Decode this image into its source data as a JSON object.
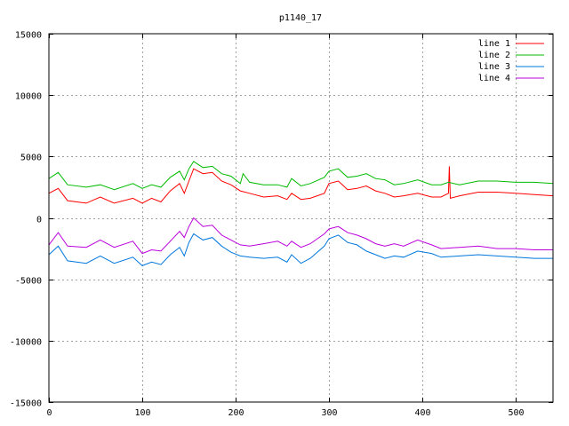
{
  "chart_data": {
    "type": "line",
    "title": "p1140_17",
    "xlim": [
      0,
      540
    ],
    "ylim": [
      -15000,
      15000
    ],
    "xticks": [
      0,
      100,
      200,
      300,
      400,
      500
    ],
    "yticks": [
      -15000,
      -10000,
      -5000,
      0,
      5000,
      10000,
      15000
    ],
    "grid": true,
    "legend_position": "top-right",
    "series": [
      {
        "name": "line 1",
        "color": "#ff0000",
        "points": [
          [
            0,
            2000
          ],
          [
            10,
            2400
          ],
          [
            20,
            1400
          ],
          [
            40,
            1200
          ],
          [
            55,
            1700
          ],
          [
            70,
            1200
          ],
          [
            90,
            1600
          ],
          [
            100,
            1200
          ],
          [
            110,
            1600
          ],
          [
            120,
            1300
          ],
          [
            130,
            2200
          ],
          [
            140,
            2800
          ],
          [
            145,
            2000
          ],
          [
            150,
            3000
          ],
          [
            155,
            4000
          ],
          [
            165,
            3600
          ],
          [
            175,
            3700
          ],
          [
            185,
            3000
          ],
          [
            195,
            2700
          ],
          [
            205,
            2200
          ],
          [
            215,
            2000
          ],
          [
            230,
            1700
          ],
          [
            245,
            1800
          ],
          [
            255,
            1500
          ],
          [
            260,
            2000
          ],
          [
            270,
            1500
          ],
          [
            280,
            1600
          ],
          [
            295,
            2000
          ],
          [
            300,
            2800
          ],
          [
            310,
            3000
          ],
          [
            320,
            2300
          ],
          [
            330,
            2400
          ],
          [
            340,
            2600
          ],
          [
            350,
            2200
          ],
          [
            360,
            2000
          ],
          [
            370,
            1700
          ],
          [
            380,
            1800
          ],
          [
            395,
            2000
          ],
          [
            410,
            1700
          ],
          [
            420,
            1700
          ],
          [
            428,
            2000
          ],
          [
            429,
            4200
          ],
          [
            430,
            1600
          ],
          [
            440,
            1800
          ],
          [
            460,
            2100
          ],
          [
            480,
            2100
          ],
          [
            500,
            2000
          ],
          [
            520,
            1900
          ],
          [
            540,
            1800
          ]
        ]
      },
      {
        "name": "line 2",
        "color": "#00bb00",
        "points": [
          [
            0,
            3200
          ],
          [
            10,
            3700
          ],
          [
            20,
            2700
          ],
          [
            40,
            2500
          ],
          [
            55,
            2700
          ],
          [
            70,
            2300
          ],
          [
            90,
            2800
          ],
          [
            100,
            2400
          ],
          [
            110,
            2700
          ],
          [
            120,
            2500
          ],
          [
            130,
            3300
          ],
          [
            140,
            3800
          ],
          [
            145,
            3100
          ],
          [
            150,
            4000
          ],
          [
            155,
            4600
          ],
          [
            165,
            4100
          ],
          [
            175,
            4200
          ],
          [
            185,
            3600
          ],
          [
            195,
            3400
          ],
          [
            205,
            2800
          ],
          [
            208,
            3600
          ],
          [
            215,
            2900
          ],
          [
            230,
            2700
          ],
          [
            245,
            2700
          ],
          [
            255,
            2500
          ],
          [
            260,
            3200
          ],
          [
            270,
            2600
          ],
          [
            280,
            2800
          ],
          [
            295,
            3300
          ],
          [
            300,
            3800
          ],
          [
            310,
            4000
          ],
          [
            320,
            3300
          ],
          [
            330,
            3400
          ],
          [
            340,
            3600
          ],
          [
            350,
            3200
          ],
          [
            360,
            3100
          ],
          [
            370,
            2700
          ],
          [
            380,
            2800
          ],
          [
            395,
            3100
          ],
          [
            410,
            2700
          ],
          [
            420,
            2700
          ],
          [
            428,
            2900
          ],
          [
            440,
            2700
          ],
          [
            460,
            3000
          ],
          [
            480,
            3000
          ],
          [
            500,
            2900
          ],
          [
            520,
            2900
          ],
          [
            540,
            2800
          ]
        ]
      },
      {
        "name": "line 3",
        "color": "#0077dd",
        "points": [
          [
            0,
            -3000
          ],
          [
            10,
            -2300
          ],
          [
            20,
            -3500
          ],
          [
            40,
            -3700
          ],
          [
            55,
            -3100
          ],
          [
            70,
            -3700
          ],
          [
            90,
            -3200
          ],
          [
            100,
            -3900
          ],
          [
            110,
            -3600
          ],
          [
            120,
            -3800
          ],
          [
            130,
            -3000
          ],
          [
            140,
            -2400
          ],
          [
            145,
            -3100
          ],
          [
            150,
            -2000
          ],
          [
            155,
            -1300
          ],
          [
            165,
            -1800
          ],
          [
            175,
            -1600
          ],
          [
            185,
            -2300
          ],
          [
            195,
            -2800
          ],
          [
            205,
            -3100
          ],
          [
            215,
            -3200
          ],
          [
            230,
            -3300
          ],
          [
            245,
            -3200
          ],
          [
            255,
            -3600
          ],
          [
            260,
            -3000
          ],
          [
            270,
            -3700
          ],
          [
            280,
            -3300
          ],
          [
            295,
            -2300
          ],
          [
            300,
            -1700
          ],
          [
            310,
            -1400
          ],
          [
            320,
            -2000
          ],
          [
            330,
            -2200
          ],
          [
            340,
            -2700
          ],
          [
            350,
            -3000
          ],
          [
            360,
            -3300
          ],
          [
            370,
            -3100
          ],
          [
            380,
            -3200
          ],
          [
            395,
            -2700
          ],
          [
            410,
            -2900
          ],
          [
            420,
            -3200
          ],
          [
            440,
            -3100
          ],
          [
            460,
            -3000
          ],
          [
            480,
            -3100
          ],
          [
            500,
            -3200
          ],
          [
            520,
            -3300
          ],
          [
            540,
            -3300
          ]
        ]
      },
      {
        "name": "line 4",
        "color": "#bb00dd",
        "points": [
          [
            0,
            -2200
          ],
          [
            10,
            -1200
          ],
          [
            20,
            -2300
          ],
          [
            40,
            -2400
          ],
          [
            55,
            -1800
          ],
          [
            70,
            -2400
          ],
          [
            90,
            -1900
          ],
          [
            100,
            -2900
          ],
          [
            110,
            -2600
          ],
          [
            120,
            -2700
          ],
          [
            130,
            -1900
          ],
          [
            140,
            -1100
          ],
          [
            145,
            -1600
          ],
          [
            150,
            -700
          ],
          [
            155,
            0
          ],
          [
            165,
            -700
          ],
          [
            175,
            -600
          ],
          [
            185,
            -1400
          ],
          [
            195,
            -1800
          ],
          [
            205,
            -2200
          ],
          [
            215,
            -2300
          ],
          [
            230,
            -2100
          ],
          [
            245,
            -1900
          ],
          [
            255,
            -2300
          ],
          [
            260,
            -1900
          ],
          [
            270,
            -2400
          ],
          [
            280,
            -2100
          ],
          [
            295,
            -1300
          ],
          [
            300,
            -900
          ],
          [
            310,
            -700
          ],
          [
            320,
            -1200
          ],
          [
            330,
            -1400
          ],
          [
            340,
            -1700
          ],
          [
            350,
            -2100
          ],
          [
            360,
            -2300
          ],
          [
            370,
            -2100
          ],
          [
            380,
            -2300
          ],
          [
            395,
            -1800
          ],
          [
            410,
            -2200
          ],
          [
            420,
            -2500
          ],
          [
            440,
            -2400
          ],
          [
            460,
            -2300
          ],
          [
            480,
            -2500
          ],
          [
            500,
            -2500
          ],
          [
            520,
            -2600
          ],
          [
            540,
            -2600
          ]
        ]
      }
    ]
  }
}
